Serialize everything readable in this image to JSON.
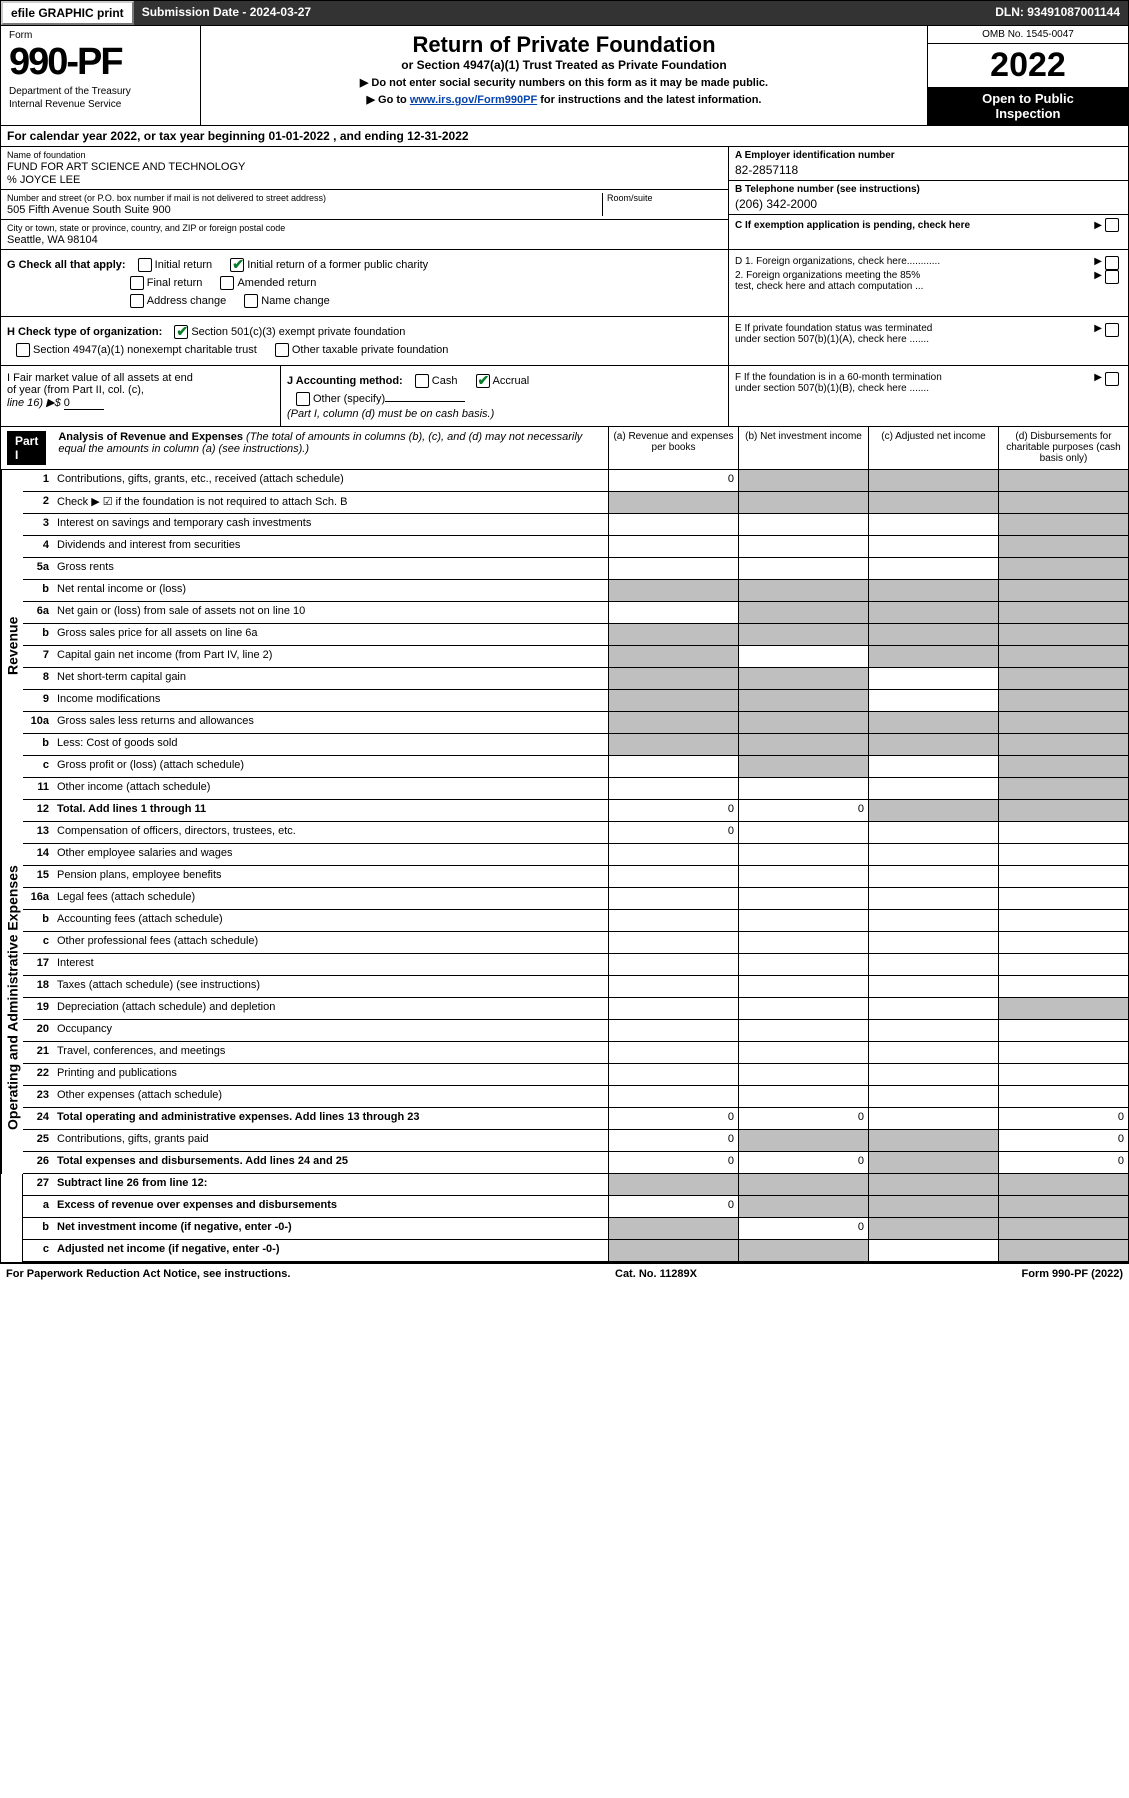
{
  "header": {
    "btn1": "efile GRAPHIC print",
    "sub_label": "Submission Date - 2024-03-27",
    "dln": "DLN: 93491087001144"
  },
  "formbox": {
    "form_label": "Form",
    "form_num": "990-PF",
    "dept1": "Department of the Treasury",
    "dept2": "Internal Revenue Service"
  },
  "title": {
    "main": "Return of Private Foundation",
    "sub": "or Section 4947(a)(1) Trust Treated as Private Foundation",
    "inst1": "▶ Do not enter social security numbers on this form as it may be made public.",
    "inst2_pre": "▶ Go to ",
    "inst2_link": "www.irs.gov/Form990PF",
    "inst2_post": " for instructions and the latest information."
  },
  "omb": {
    "num": "OMB No. 1545-0047",
    "year": "2022",
    "open1": "Open to Public",
    "open2": "Inspection"
  },
  "cal": "For calendar year 2022, or tax year beginning 01-01-2022                        , and ending 12-31-2022",
  "ident": {
    "name_lbl": "Name of foundation",
    "name": "FUND FOR ART SCIENCE AND TECHNOLOGY",
    "care": "% JOYCE LEE",
    "addr_lbl": "Number and street (or P.O. box number if mail is not delivered to street address)",
    "addr": "505 Fifth Avenue South Suite 900",
    "room_lbl": "Room/suite",
    "city_lbl": "City or town, state or province, country, and ZIP or foreign postal code",
    "city": "Seattle, WA  98104",
    "ein_lbl": "A Employer identification number",
    "ein": "82-2857118",
    "tel_lbl": "B Telephone number (see instructions)",
    "tel": "(206) 342-2000",
    "c_lbl": "C If exemption application is pending, check here"
  },
  "g": {
    "lbl": "G Check all that apply:",
    "opts": [
      "Initial return",
      "Final return",
      "Address change",
      "Initial return of a former public charity",
      "Amended return",
      "Name change"
    ],
    "d1": "D 1. Foreign organizations, check here............",
    "d2a": "2. Foreign organizations meeting the 85%",
    "d2b": "test, check here and attach computation ...",
    "e1": "E  If private foundation status was terminated",
    "e2": "under section 507(b)(1)(A), check here .......",
    "f1": "F  If the foundation is in a 60-month termination",
    "f2": "under section 507(b)(1)(B), check here ......."
  },
  "h": {
    "lbl": "H Check type of organization:",
    "o1": "Section 501(c)(3) exempt private foundation",
    "o2": "Section 4947(a)(1) nonexempt charitable trust",
    "o3": "Other taxable private foundation"
  },
  "i": {
    "lbl1": "I Fair market value of all assets at end",
    "lbl2": "of year (from Part II, col. (c),",
    "lbl3": "line 16) ▶$ ",
    "val": "0"
  },
  "j": {
    "lbl": "J Accounting method:",
    "cash": "Cash",
    "accrual": "Accrual",
    "other": "Other (specify)",
    "note": "(Part I, column (d) must be on cash basis.)"
  },
  "part1": {
    "hdr": "Part I",
    "title": "Analysis of Revenue and Expenses",
    "note": " (The total of amounts in columns (b), (c), and (d) may not necessarily equal the amounts in column (a) (see instructions).)",
    "cols": [
      "(a)  Revenue and expenses per books",
      "(b)  Net investment income",
      "(c)  Adjusted net income",
      "(d)  Disbursements for charitable purposes (cash basis only)"
    ]
  },
  "sides": {
    "rev": "Revenue",
    "ope": "Operating and Administrative Expenses"
  },
  "rev_lines": [
    {
      "n": "1",
      "d": "Contributions, gifts, grants, etc., received (attach schedule)",
      "a": "0",
      "grey": [
        false,
        true,
        true,
        true
      ]
    },
    {
      "n": "2",
      "d": "Check ▶ ☑ if the foundation is not required to attach Sch. B",
      "grey": [
        true,
        true,
        true,
        true
      ],
      "bold_not": true
    },
    {
      "n": "3",
      "d": "Interest on savings and temporary cash investments",
      "grey": [
        false,
        false,
        false,
        true
      ]
    },
    {
      "n": "4",
      "d": "Dividends and interest from securities",
      "grey": [
        false,
        false,
        false,
        true
      ]
    },
    {
      "n": "5a",
      "d": "Gross rents",
      "grey": [
        false,
        false,
        false,
        true
      ]
    },
    {
      "n": "b",
      "d": "Net rental income or (loss)",
      "grey": [
        true,
        true,
        true,
        true
      ],
      "short": true
    },
    {
      "n": "6a",
      "d": "Net gain or (loss) from sale of assets not on line 10",
      "grey": [
        false,
        true,
        true,
        true
      ]
    },
    {
      "n": "b",
      "d": "Gross sales price for all assets on line 6a",
      "grey": [
        true,
        true,
        true,
        true
      ],
      "short": true
    },
    {
      "n": "7",
      "d": "Capital gain net income (from Part IV, line 2)",
      "grey": [
        true,
        false,
        true,
        true
      ]
    },
    {
      "n": "8",
      "d": "Net short-term capital gain",
      "grey": [
        true,
        true,
        false,
        true
      ]
    },
    {
      "n": "9",
      "d": "Income modifications",
      "grey": [
        true,
        true,
        false,
        true
      ]
    },
    {
      "n": "10a",
      "d": "Gross sales less returns and allowances",
      "grey": [
        true,
        true,
        true,
        true
      ],
      "short": true
    },
    {
      "n": "b",
      "d": "Less: Cost of goods sold",
      "grey": [
        true,
        true,
        true,
        true
      ],
      "short": true
    },
    {
      "n": "c",
      "d": "Gross profit or (loss) (attach schedule)",
      "grey": [
        false,
        true,
        false,
        true
      ]
    },
    {
      "n": "11",
      "d": "Other income (attach schedule)",
      "grey": [
        false,
        false,
        false,
        true
      ]
    },
    {
      "n": "12",
      "d": "Total. Add lines 1 through 11",
      "a": "0",
      "b": "0",
      "grey": [
        false,
        false,
        true,
        true
      ],
      "bold": true
    }
  ],
  "ope_lines": [
    {
      "n": "13",
      "d": "Compensation of officers, directors, trustees, etc.",
      "a": "0",
      "grey": [
        false,
        false,
        false,
        false
      ]
    },
    {
      "n": "14",
      "d": "Other employee salaries and wages",
      "grey": [
        false,
        false,
        false,
        false
      ]
    },
    {
      "n": "15",
      "d": "Pension plans, employee benefits",
      "grey": [
        false,
        false,
        false,
        false
      ]
    },
    {
      "n": "16a",
      "d": "Legal fees (attach schedule)",
      "grey": [
        false,
        false,
        false,
        false
      ]
    },
    {
      "n": "b",
      "d": "Accounting fees (attach schedule)",
      "grey": [
        false,
        false,
        false,
        false
      ]
    },
    {
      "n": "c",
      "d": "Other professional fees (attach schedule)",
      "grey": [
        false,
        false,
        false,
        false
      ]
    },
    {
      "n": "17",
      "d": "Interest",
      "grey": [
        false,
        false,
        false,
        false
      ]
    },
    {
      "n": "18",
      "d": "Taxes (attach schedule) (see instructions)",
      "grey": [
        false,
        false,
        false,
        false
      ]
    },
    {
      "n": "19",
      "d": "Depreciation (attach schedule) and depletion",
      "grey": [
        false,
        false,
        false,
        true
      ]
    },
    {
      "n": "20",
      "d": "Occupancy",
      "grey": [
        false,
        false,
        false,
        false
      ]
    },
    {
      "n": "21",
      "d": "Travel, conferences, and meetings",
      "grey": [
        false,
        false,
        false,
        false
      ]
    },
    {
      "n": "22",
      "d": "Printing and publications",
      "grey": [
        false,
        false,
        false,
        false
      ]
    },
    {
      "n": "23",
      "d": "Other expenses (attach schedule)",
      "grey": [
        false,
        false,
        false,
        false
      ]
    },
    {
      "n": "24",
      "d": "Total operating and administrative expenses. Add lines 13 through 23",
      "a": "0",
      "b": "0",
      "d4": "0",
      "grey": [
        false,
        false,
        false,
        false
      ],
      "bold": true
    },
    {
      "n": "25",
      "d": "Contributions, gifts, grants paid",
      "a": "0",
      "d4": "0",
      "grey": [
        false,
        true,
        true,
        false
      ]
    },
    {
      "n": "26",
      "d": "Total expenses and disbursements. Add lines 24 and 25",
      "a": "0",
      "b": "0",
      "d4": "0",
      "grey": [
        false,
        false,
        true,
        false
      ],
      "bold": true
    }
  ],
  "net_lines": [
    {
      "n": "27",
      "d": "Subtract line 26 from line 12:",
      "grey": [
        true,
        true,
        true,
        true
      ],
      "bold": true
    },
    {
      "n": "a",
      "d": "Excess of revenue over expenses and disbursements",
      "a": "0",
      "grey": [
        false,
        true,
        true,
        true
      ],
      "bold": true
    },
    {
      "n": "b",
      "d": "Net investment income (if negative, enter -0-)",
      "b": "0",
      "grey": [
        true,
        false,
        true,
        true
      ],
      "bold": true
    },
    {
      "n": "c",
      "d": "Adjusted net income (if negative, enter -0-)",
      "grey": [
        true,
        true,
        false,
        true
      ],
      "bold": true
    }
  ],
  "footer": {
    "left": "For Paperwork Reduction Act Notice, see instructions.",
    "mid": "Cat. No. 11289X",
    "right": "Form 990-PF (2022)"
  },
  "colors": {
    "grey_cell": "#bfbfbf",
    "link": "#0645ad",
    "check": "#0a7d2c"
  }
}
